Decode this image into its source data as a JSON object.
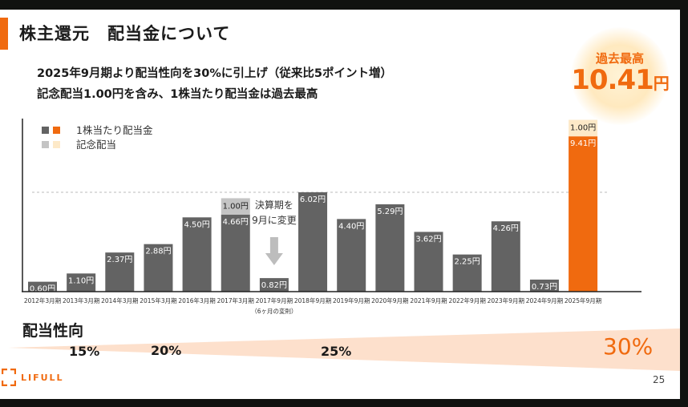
{
  "header": {
    "title": "株主還元　配当金について",
    "subtitle_line1": "2025年9月期より配当性向を30%に引上げ（従来比5ポイント増）",
    "subtitle_line2": "記念配当1.00円を含み、1株当たり配当金は過去最高"
  },
  "record_badge": {
    "label": "過去最高",
    "value": "10.41",
    "unit": "円"
  },
  "chart_data": {
    "type": "bar",
    "stacked": true,
    "legend": {
      "placement": "top-left",
      "items": [
        {
          "name": "1株当たり配当金",
          "colors": [
            "#636363",
            "#f06a0f"
          ]
        },
        {
          "name": "記念配当",
          "colors": [
            "#c4c4c4",
            "#fde9c8"
          ]
        }
      ]
    },
    "categories": [
      "2012年3月期",
      "2013年3月期",
      "2014年3月期",
      "2015年3月期",
      "2016年3月期",
      "2017年3月期",
      "2017年9月期",
      "2018年9月期",
      "2019年9月期",
      "2020年9月期",
      "2021年9月期",
      "2022年9月期",
      "2023年9月期",
      "2024年9月期",
      "2025年9月期"
    ],
    "category_note": {
      "index": 6,
      "text": "（6ヶ月の変則）"
    },
    "series": [
      {
        "name": "1株当たり配当金",
        "values": [
          0.6,
          1.1,
          2.37,
          2.88,
          4.5,
          4.66,
          0.82,
          6.02,
          4.4,
          5.29,
          3.62,
          2.25,
          4.26,
          0.73,
          9.41
        ]
      },
      {
        "name": "記念配当",
        "values": [
          0,
          0,
          0,
          0,
          0,
          1.0,
          0,
          0,
          0,
          0,
          0,
          0,
          0,
          0,
          1.0
        ]
      }
    ],
    "data_labels": {
      "dividend": [
        "0.60円",
        "1.10円",
        "2.37円",
        "2.88円",
        "4.50円",
        "4.66円",
        "0.82円",
        "6.02円",
        "4.40円",
        "5.29円",
        "3.62円",
        "2.25円",
        "4.26円",
        "0.73円",
        "9.41円"
      ],
      "commemorative": {
        "5": "1.00円",
        "14": "1.00円"
      }
    },
    "reference_line": {
      "value": 6.02,
      "style": "dashed"
    },
    "annotation": {
      "line1": "決算期を",
      "line2": "9月に変更",
      "icon": "arrow-down-icon"
    },
    "highlight_index": 14,
    "colors": {
      "base": "#636363",
      "base_commemorative": "#c4c4c4",
      "highlight": "#f06a0f",
      "highlight_commemorative": "#fde9c8"
    },
    "ylim": [
      0,
      10.5
    ]
  },
  "payout_ratio": {
    "title": "配当性向",
    "values": [
      "15%",
      "20%",
      "25%",
      "30%"
    ]
  },
  "footer": {
    "logo": "LIFULL",
    "page_number": "25"
  }
}
